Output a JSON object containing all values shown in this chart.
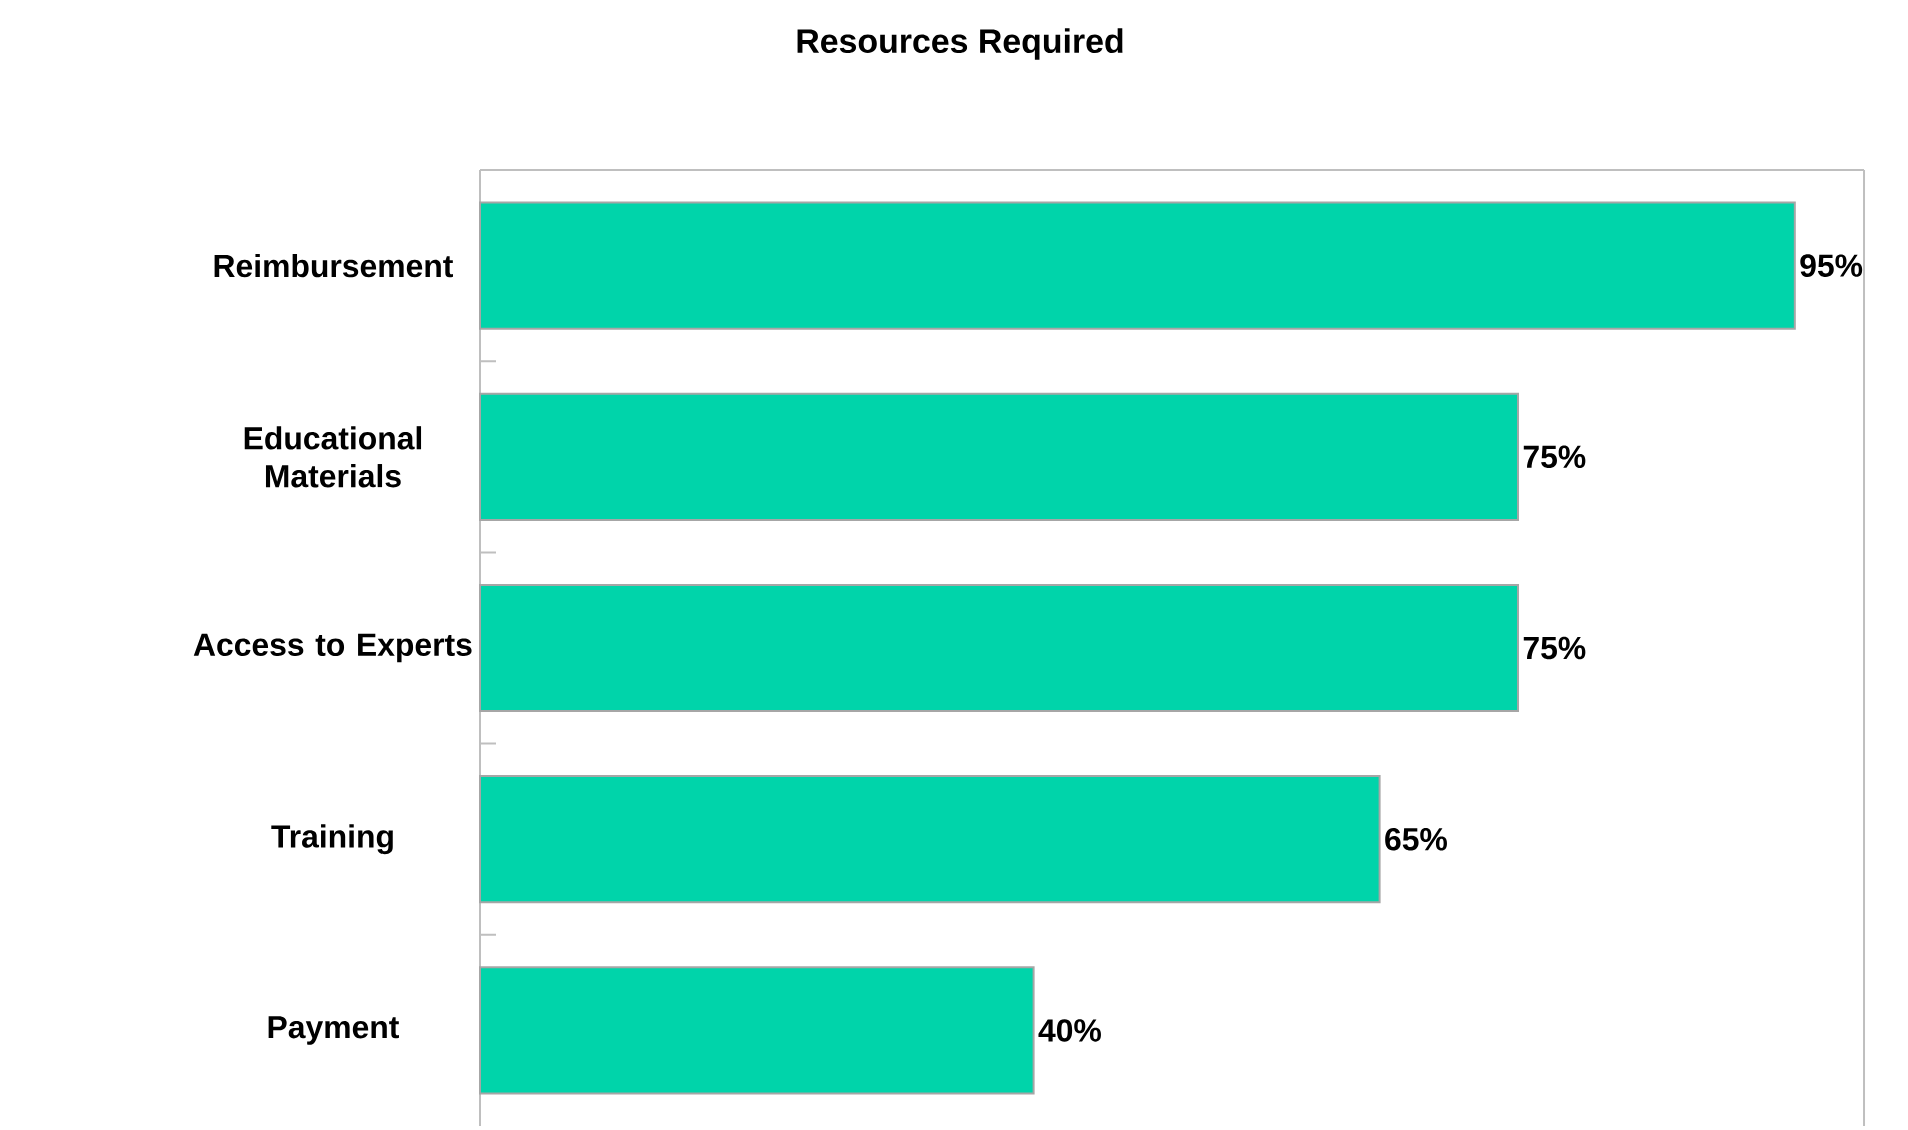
{
  "chart_data": {
    "type": "bar",
    "orientation": "horizontal",
    "title": "Resources Required",
    "categories": [
      "Reimbursement",
      "Educational Materials",
      "Access to Experts",
      "Training",
      "Payment"
    ],
    "values": [
      95,
      75,
      75,
      65,
      40
    ],
    "value_labels": [
      "95%",
      "75%",
      "75%",
      "65%",
      "40%"
    ],
    "color": "#00d4aa",
    "xlim": [
      0,
      100
    ],
    "tick_labels": "y"
  }
}
